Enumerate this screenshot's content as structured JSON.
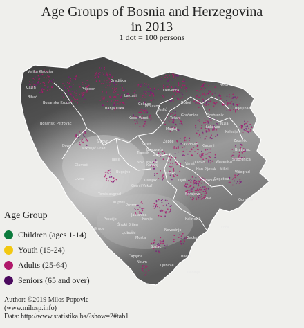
{
  "title_line1": "Age Groups of Bosnia and Herzegovina",
  "title_line2": "in 2013",
  "subtitle": "1 dot = 100 persons",
  "legend": {
    "title": "Age Group",
    "items": [
      {
        "label": "Children (ages 1-14)",
        "color": "#0b7a3c"
      },
      {
        "label": "Youth (15-24)",
        "color": "#f2c811"
      },
      {
        "label": "Adults (25-64)",
        "color": "#b0186a"
      },
      {
        "label": "Seniors (65 and over)",
        "color": "#4b0a5e"
      }
    ]
  },
  "credits": {
    "line1": "Author: ©2019 Milos Popovic",
    "line2": "(www.milosp.info)",
    "line3": "Data: http://www.statistika.ba/?show=2#tab1"
  },
  "colors": {
    "background": "#efefec",
    "terrain_dark": "#3a3a3a",
    "terrain_light": "#d4d4d4",
    "borders": "#ffffff"
  },
  "places": [
    "Velika Kladuša",
    "Cazin",
    "Bihać",
    "Bosanska Krupa",
    "Bosanski Petrovac",
    "Drvar",
    "Prijedor",
    "Banja Luka",
    "Gradiška",
    "Laktaši",
    "Derventa",
    "Doboj",
    "Brčko",
    "Bijeljina",
    "Tuzla",
    "Lukavac",
    "Zvornik",
    "Kladanj",
    "Kalesija",
    "Srebrenik",
    "Gračanica",
    "Tešanj",
    "Maglaj",
    "Žepče",
    "Zavidovići",
    "Zenica",
    "Kakanj",
    "Visoko",
    "Vareš",
    "Olovo",
    "Kiseljak",
    "Sarajevo",
    "Ilijaš",
    "Pale",
    "Rogatica",
    "Višegrad",
    "Foča",
    "Goražde",
    "Konjic",
    "Jablanica",
    "Mostar",
    "Čapljina",
    "Stolac",
    "Neum",
    "Ljubinje",
    "Trebinje",
    "Bileća",
    "Gacko",
    "Nevesinje",
    "Kalinovik",
    "Livno",
    "Tomislavgrad",
    "Posušje",
    "Grude",
    "Ljubuški",
    "Široki Brijeg",
    "Prozor",
    "Bugojno",
    "Gornji Vakuf",
    "Travnik",
    "Novi Travnik",
    "Vitez",
    "Busovača",
    "Jajce",
    "Mrkonjić Grad",
    "Šipovo",
    "Glamoč",
    "Kupres",
    "Kotor Varoš",
    "Teslić",
    "Srebrenica",
    "Bratunac",
    "Vlasenica",
    "Milići",
    "Han Pijesak",
    "Sokolac",
    "Čelinac",
    "Prnjavor"
  ]
}
